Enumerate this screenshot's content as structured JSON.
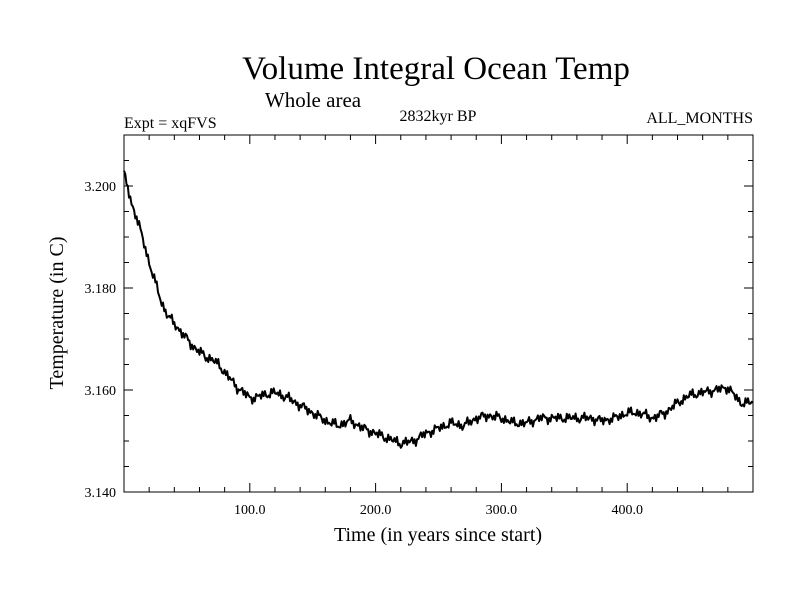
{
  "chart_data": {
    "type": "line",
    "title": "Volume Integral Ocean Temp",
    "subtitle": "Whole area",
    "experiment": "Expt = xqFVS",
    "period": "2832kyr BP",
    "months": "ALL_MONTHS",
    "xlabel": "Time (in years since start)",
    "ylabel": "Temperature (in C)",
    "xlim": [
      0,
      500
    ],
    "ylim": [
      3.14,
      3.21
    ],
    "x_ticks": [
      100,
      200,
      300,
      400
    ],
    "x_tick_labels": [
      "100.0",
      "200.0",
      "300.0",
      "400.0"
    ],
    "y_ticks": [
      3.14,
      3.16,
      3.18,
      3.2
    ],
    "y_tick_labels": [
      "3.140",
      "3.160",
      "3.180",
      "3.200"
    ],
    "grid": false,
    "series": [
      {
        "name": "Volume integral ocean temperature",
        "color": "#000000",
        "x": [
          0,
          3,
          6,
          10,
          15,
          20,
          25,
          30,
          35,
          40,
          45,
          50,
          55,
          60,
          65,
          70,
          75,
          80,
          85,
          90,
          95,
          100,
          105,
          110,
          120,
          130,
          140,
          150,
          160,
          170,
          180,
          190,
          200,
          210,
          220,
          230,
          240,
          250,
          260,
          270,
          280,
          290,
          300,
          310,
          320,
          330,
          340,
          350,
          360,
          370,
          380,
          390,
          400,
          410,
          420,
          430,
          440,
          450,
          460,
          470,
          480,
          490,
          500
        ],
        "values": [
          3.2025,
          3.1995,
          3.1965,
          3.194,
          3.1895,
          3.185,
          3.181,
          3.177,
          3.1745,
          3.173,
          3.1715,
          3.17,
          3.1685,
          3.1675,
          3.1665,
          3.166,
          3.165,
          3.1635,
          3.162,
          3.1605,
          3.1595,
          3.1585,
          3.1585,
          3.159,
          3.1595,
          3.1585,
          3.157,
          3.1555,
          3.154,
          3.153,
          3.154,
          3.1525,
          3.1515,
          3.1505,
          3.1495,
          3.15,
          3.1515,
          3.1525,
          3.1535,
          3.153,
          3.1545,
          3.155,
          3.1545,
          3.1535,
          3.1535,
          3.1545,
          3.1545,
          3.1545,
          3.1545,
          3.1545,
          3.154,
          3.1545,
          3.1555,
          3.1555,
          3.1545,
          3.1555,
          3.1575,
          3.159,
          3.1595,
          3.16,
          3.1605,
          3.1575,
          3.1575
        ]
      }
    ]
  }
}
